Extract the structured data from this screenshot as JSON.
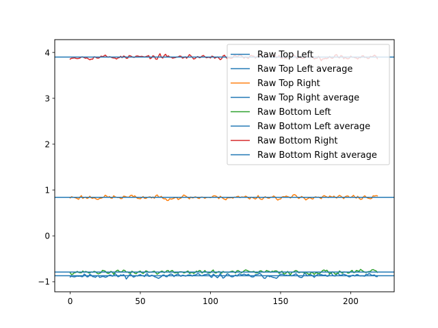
{
  "chart_data": {
    "type": "line",
    "title": "",
    "xlabel": "",
    "ylabel": "",
    "xlim": [
      -11,
      231
    ],
    "ylim": [
      -1.22,
      4.28
    ],
    "xticks": [
      0,
      50,
      100,
      150,
      200
    ],
    "yticks": [
      -1,
      0,
      1,
      2,
      3,
      4
    ],
    "grid": false,
    "legend_position": "top-right",
    "n_points": 220,
    "series": [
      {
        "name": "Raw Top Left",
        "kind": "noisy",
        "base": -0.87,
        "amp": 0.05,
        "seed": 11,
        "color": "#1f77b4"
      },
      {
        "name": "Raw Top Left average",
        "kind": "constant",
        "value": -0.87,
        "color": "#1f77b4"
      },
      {
        "name": "Raw Top Right",
        "kind": "noisy",
        "base": 0.84,
        "amp": 0.05,
        "seed": 23,
        "color": "#ff7f0e"
      },
      {
        "name": "Raw Top Right average",
        "kind": "constant",
        "value": 0.84,
        "color": "#1f77b4"
      },
      {
        "name": "Raw Bottom Left",
        "kind": "noisy",
        "base": -0.79,
        "amp": 0.045,
        "seed": 37,
        "color": "#2ca02c"
      },
      {
        "name": "Raw Bottom Left average",
        "kind": "constant",
        "value": -0.79,
        "color": "#1f77b4"
      },
      {
        "name": "Raw Bottom Right",
        "kind": "noisy",
        "base": 3.9,
        "amp": 0.05,
        "seed": 53,
        "color": "#d62728"
      },
      {
        "name": "Raw Bottom Right average",
        "kind": "constant",
        "value": 3.9,
        "color": "#1f77b4"
      }
    ]
  }
}
